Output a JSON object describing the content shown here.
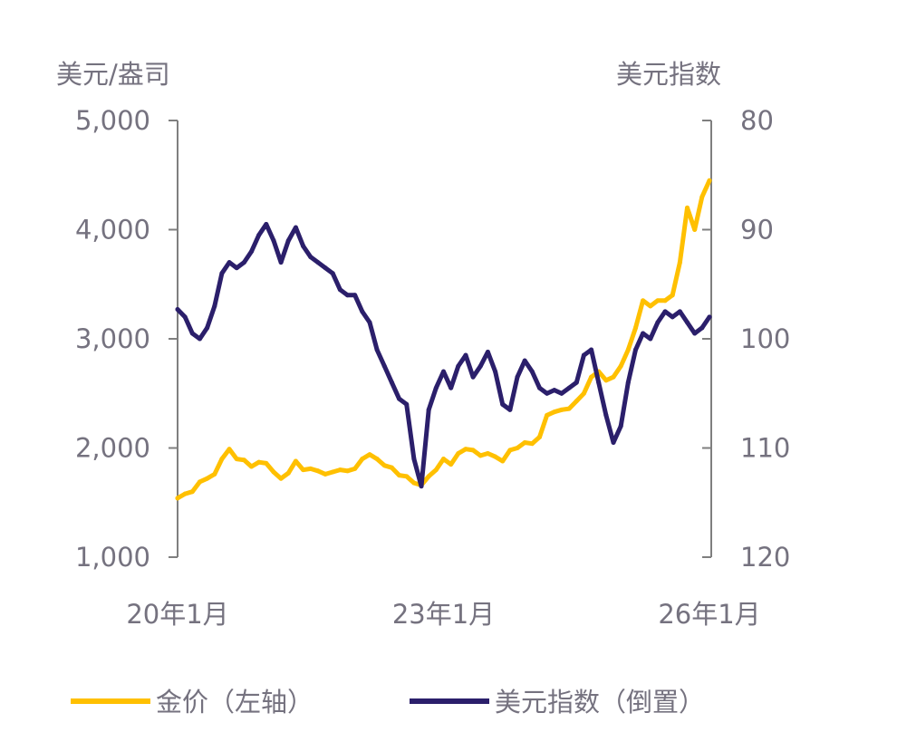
{
  "chart_data": {
    "type": "line",
    "left_axis": {
      "label": "美元/盎司",
      "ylim": [
        1000,
        5000
      ],
      "ticks": [
        "1,000",
        "2,000",
        "3,000",
        "4,000",
        "5,000"
      ],
      "tick_values": [
        1000,
        2000,
        3000,
        4000,
        5000
      ]
    },
    "right_axis": {
      "label": "美元指数",
      "ylim": [
        80,
        120
      ],
      "inverted": true,
      "ticks": [
        "80",
        "90",
        "100",
        "110",
        "120"
      ],
      "tick_values": [
        80,
        90,
        100,
        110,
        120
      ]
    },
    "x_ticks": [
      {
        "label": "20年1月",
        "date": "2020-01"
      },
      {
        "label": "23年1月",
        "date": "2023-01"
      },
      {
        "label": "26年1月",
        "date": "2026-01"
      }
    ],
    "x_range": [
      "2020-01",
      "2026-01"
    ],
    "grid": false,
    "legend_position": "bottom",
    "series": [
      {
        "name": "金价（左轴）",
        "axis": "left",
        "color": "#FFC000",
        "values": [
          1540,
          1580,
          1600,
          1690,
          1720,
          1760,
          1900,
          1990,
          1900,
          1890,
          1830,
          1870,
          1860,
          1780,
          1720,
          1770,
          1880,
          1800,
          1810,
          1790,
          1760,
          1780,
          1800,
          1790,
          1810,
          1900,
          1940,
          1900,
          1840,
          1820,
          1750,
          1740,
          1680,
          1660,
          1740,
          1800,
          1900,
          1850,
          1950,
          1990,
          1980,
          1930,
          1950,
          1920,
          1880,
          1980,
          2000,
          2050,
          2040,
          2100,
          2300,
          2330,
          2350,
          2360,
          2430,
          2500,
          2650,
          2700,
          2620,
          2650,
          2750,
          2900,
          3100,
          3350,
          3300,
          3350,
          3350,
          3400,
          3700,
          4200,
          4000,
          4300,
          4450
        ]
      },
      {
        "name": "美元指数（倒置）",
        "axis": "right",
        "color": "#2B1F6B",
        "values": [
          97.3,
          98,
          99.5,
          100,
          99,
          97,
          94,
          93,
          93.5,
          93,
          92,
          90.5,
          89.5,
          91,
          93,
          91,
          89.8,
          91.5,
          92.5,
          93,
          93.5,
          94,
          95.5,
          96,
          96,
          97.5,
          98.5,
          101,
          102.5,
          104,
          105.5,
          106,
          111,
          113.5,
          106.5,
          104.5,
          103,
          104.5,
          102.5,
          101.5,
          103.5,
          102.5,
          101.2,
          103,
          106,
          106.5,
          103.5,
          102,
          103,
          104.5,
          105,
          104.7,
          105,
          104.5,
          104,
          101.5,
          101,
          104,
          107,
          109.5,
          108,
          104,
          101,
          99.5,
          100,
          98.5,
          97.5,
          98,
          97.5,
          98.5,
          99.5,
          99,
          98
        ]
      }
    ]
  }
}
